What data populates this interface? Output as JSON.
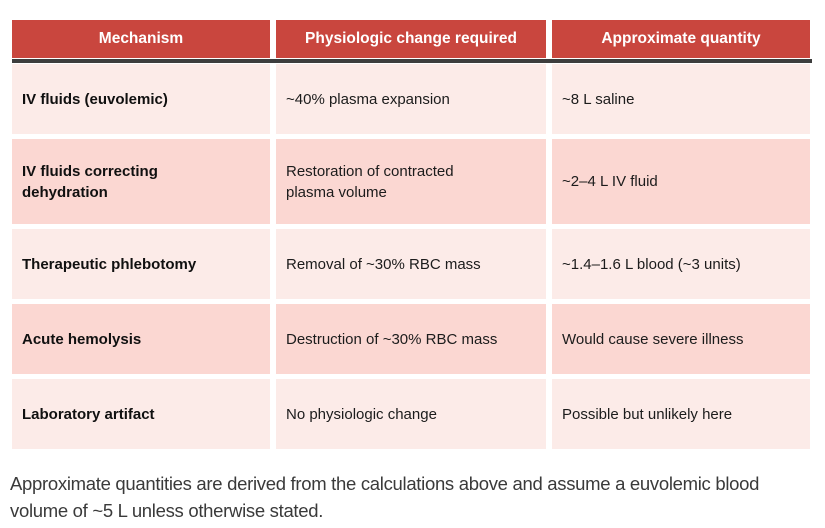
{
  "table": {
    "columns": [
      "Mechanism",
      "Physiologic change required",
      "Approximate quantity"
    ],
    "rows": [
      {
        "mechanism": "IV fluids (euvolemic)",
        "change": "~40% plasma expansion",
        "quantity": "~8 L saline"
      },
      {
        "mechanism": "IV fluids correcting dehydration",
        "change": "Restoration of contracted plasma volume",
        "quantity": "~2–4 L IV fluid"
      },
      {
        "mechanism": "Therapeutic phlebotomy",
        "change": "Removal of ~30% RBC mass",
        "quantity": "~1.4–1.6 L blood (~3 units)"
      },
      {
        "mechanism": "Acute hemolysis",
        "change": "Destruction of ~30% RBC mass",
        "quantity": "Would cause severe illness"
      },
      {
        "mechanism": "Laboratory artifact",
        "change": "No physiologic change",
        "quantity": "Possible but unlikely here"
      }
    ]
  },
  "footnote": "Approximate quantities are derived from the calculations above and assume a euvolemic blood volume of ~5 L unless otherwise stated.",
  "colors": {
    "header_bg": "#c9463e",
    "row_light": "#fcebe8",
    "row_dark": "#fbd7d2",
    "divider": "#3d3d3d",
    "header_text": "#ffffff"
  }
}
